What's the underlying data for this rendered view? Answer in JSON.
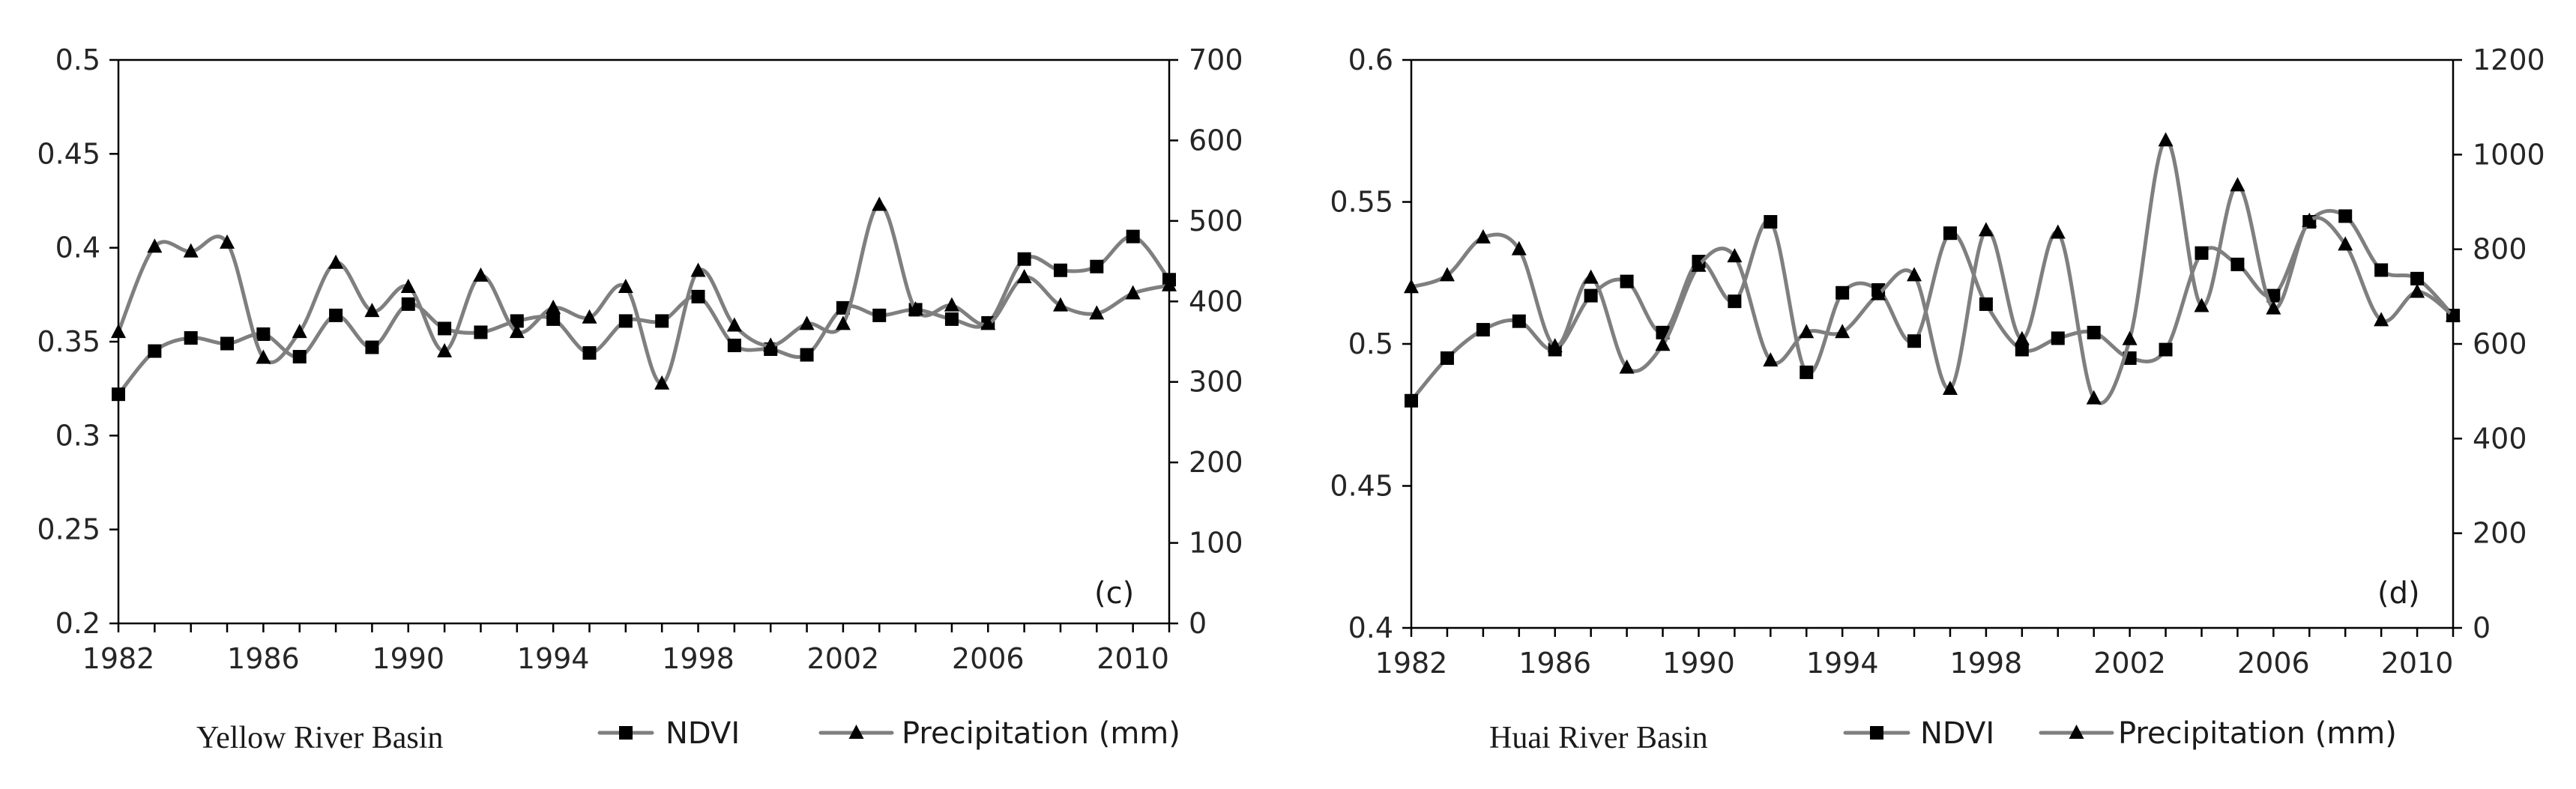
{
  "chart_data": [
    {
      "type": "line",
      "id": "c",
      "panel_label": "(c)",
      "title": "Yellow River Basin",
      "x": [
        1982,
        1983,
        1984,
        1985,
        1986,
        1987,
        1988,
        1989,
        1990,
        1991,
        1992,
        1993,
        1994,
        1995,
        1996,
        1997,
        1998,
        1999,
        2000,
        2001,
        2002,
        2003,
        2004,
        2005,
        2006,
        2007,
        2008,
        2009,
        2010,
        2011
      ],
      "x_ticks": [
        "1982",
        "1986",
        "1990",
        "1994",
        "1998",
        "2002",
        "2006",
        "2010"
      ],
      "xlim": [
        1982,
        2011
      ],
      "y_left": {
        "lim": [
          0.2,
          0.5
        ],
        "ticks": [
          "0.5",
          "0.45",
          "0.4",
          "0.35",
          "0.3",
          "0.25",
          "0.2"
        ],
        "tick_values": [
          0.5,
          0.45,
          0.4,
          0.35,
          0.3,
          0.25,
          0.2
        ]
      },
      "y_right": {
        "lim": [
          0,
          700
        ],
        "ticks": [
          "700",
          "600",
          "500",
          "400",
          "300",
          "200",
          "100",
          "0"
        ],
        "tick_values": [
          700,
          600,
          500,
          400,
          300,
          200,
          100,
          0
        ]
      },
      "series": [
        {
          "name": "NDVI",
          "marker": "square",
          "axis": "left",
          "values": [
            0.322,
            0.345,
            0.352,
            0.349,
            0.354,
            0.342,
            0.364,
            0.347,
            0.37,
            0.357,
            0.355,
            0.361,
            0.362,
            0.344,
            0.361,
            0.361,
            0.374,
            0.348,
            0.346,
            0.343,
            0.368,
            0.364,
            0.367,
            0.362,
            0.36,
            0.394,
            0.388,
            0.39,
            0.406,
            0.383
          ]
        },
        {
          "name": "Precipitation (mm)",
          "marker": "triangle",
          "axis": "right",
          "values": [
            362,
            468,
            462,
            473,
            330,
            362,
            448,
            388,
            418,
            338,
            432,
            362,
            392,
            380,
            418,
            298,
            438,
            370,
            345,
            372,
            372,
            520,
            390,
            395,
            372,
            430,
            395,
            385,
            410,
            420
          ]
        }
      ],
      "legend": [
        "NDVI",
        "Precipitation (mm)"
      ]
    },
    {
      "type": "line",
      "id": "d",
      "panel_label": "(d)",
      "title": "Huai River Basin",
      "x": [
        1982,
        1983,
        1984,
        1985,
        1986,
        1987,
        1988,
        1989,
        1990,
        1991,
        1992,
        1993,
        1994,
        1995,
        1996,
        1997,
        1998,
        1999,
        2000,
        2001,
        2002,
        2003,
        2004,
        2005,
        2006,
        2007,
        2008,
        2009,
        2010,
        2011
      ],
      "x_ticks": [
        "1982",
        "1986",
        "1990",
        "1994",
        "1998",
        "2002",
        "2006",
        "2010"
      ],
      "xlim": [
        1982,
        2011
      ],
      "y_left": {
        "lim": [
          0.4,
          0.6
        ],
        "ticks": [
          "0.6",
          "0.55",
          "0.5",
          "0.45",
          "0.4"
        ],
        "tick_values": [
          0.6,
          0.55,
          0.5,
          0.45,
          0.4
        ]
      },
      "y_right": {
        "lim": [
          0,
          1200
        ],
        "ticks": [
          "1200",
          "1000",
          "800",
          "600",
          "400",
          "200",
          "0"
        ],
        "tick_values": [
          1200,
          1000,
          800,
          600,
          400,
          200,
          0
        ]
      },
      "series": [
        {
          "name": "NDVI",
          "marker": "square",
          "axis": "left",
          "values": [
            0.48,
            0.495,
            0.505,
            0.508,
            0.498,
            0.517,
            0.522,
            0.504,
            0.529,
            0.515,
            0.543,
            0.49,
            0.518,
            0.519,
            0.501,
            0.539,
            0.514,
            0.498,
            0.502,
            0.504,
            0.495,
            0.498,
            0.532,
            0.528,
            0.517,
            0.543,
            0.545,
            0.526,
            0.523,
            0.51
          ]
        },
        {
          "name": "Precipitation (mm)",
          "marker": "triangle",
          "axis": "right",
          "values": [
            720,
            745,
            825,
            800,
            595,
            740,
            550,
            598,
            765,
            785,
            565,
            625,
            625,
            705,
            745,
            505,
            840,
            610,
            835,
            485,
            610,
            1030,
            680,
            935,
            675,
            860,
            810,
            650,
            710,
            660
          ]
        }
      ],
      "legend": [
        "NDVI",
        "Precipitation (mm)"
      ]
    }
  ]
}
